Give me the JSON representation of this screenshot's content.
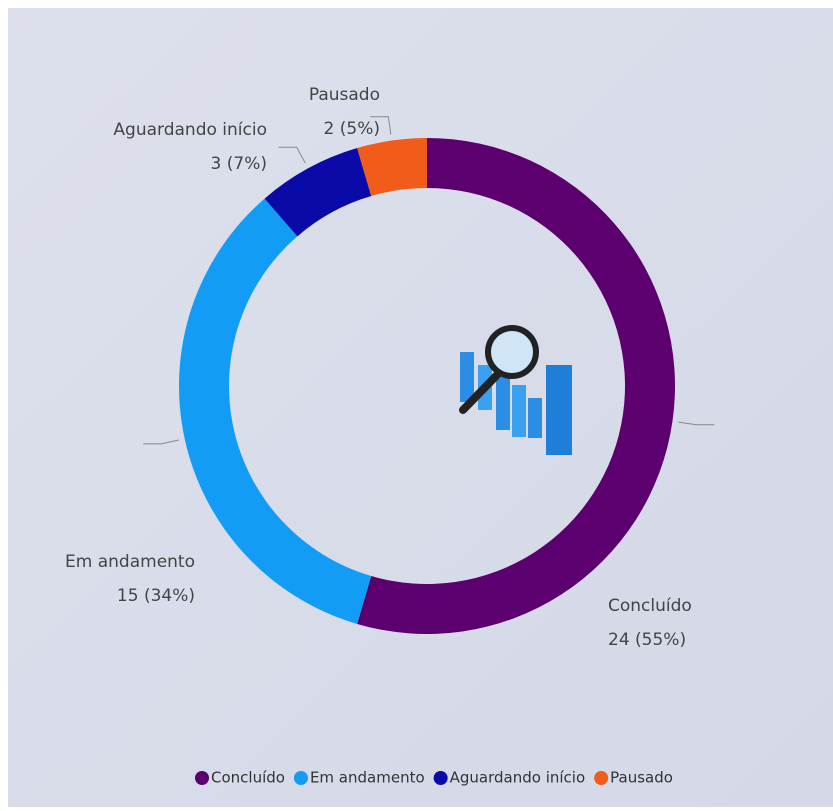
{
  "chart_data": {
    "type": "donut",
    "categories": [
      "Concluído",
      "Em andamento",
      "Aguardando início",
      "Pausado"
    ],
    "values": [
      24,
      15,
      3,
      2
    ],
    "value_labels": [
      "24 (55%)",
      "15 (34%)",
      "3 (7%)",
      "2 (5%)"
    ],
    "colors": [
      "#5b006e",
      "#139cf5",
      "#0a0aa8",
      "#f25c1a"
    ],
    "legend": "bottom"
  }
}
